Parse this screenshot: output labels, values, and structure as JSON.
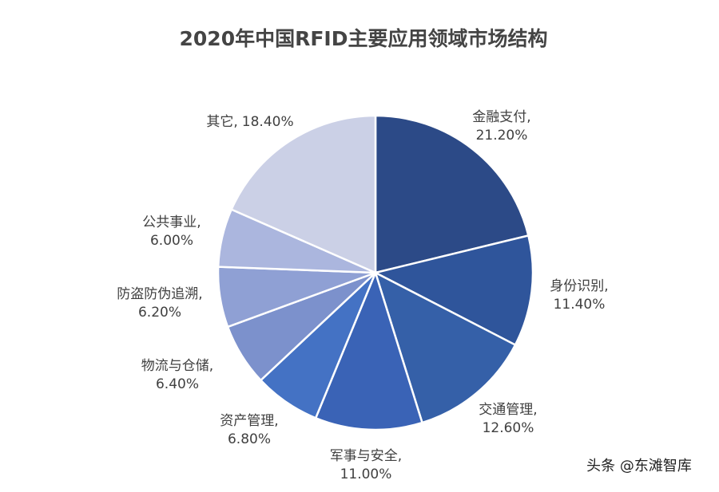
{
  "chart_data": {
    "type": "pie",
    "title": "2020年中国RFID主要应用领域市场结构",
    "categories": [
      "金融支付,",
      "身份识别,",
      "交通管理,",
      "军事与安全,",
      "资产管理,",
      "物流与仓储,",
      "防盗防伪追溯,",
      "公共事业,",
      "其它,"
    ],
    "values": [
      21.2,
      11.4,
      12.6,
      11.0,
      6.8,
      6.4,
      6.2,
      6.0,
      18.4
    ],
    "value_labels": [
      "21.20%",
      "11.40%",
      "12.60%",
      "11.00%",
      "6.80%",
      "6.40%",
      "6.20%",
      "6.00%",
      "18.40%"
    ],
    "colors": [
      "#2c4a87",
      "#2f559b",
      "#3560a8",
      "#3a63b6",
      "#4472c4",
      "#7c91cc",
      "#8fa0d4",
      "#abb6de",
      "#cbd0e6"
    ],
    "watermark": "头条 @东滩智库"
  }
}
